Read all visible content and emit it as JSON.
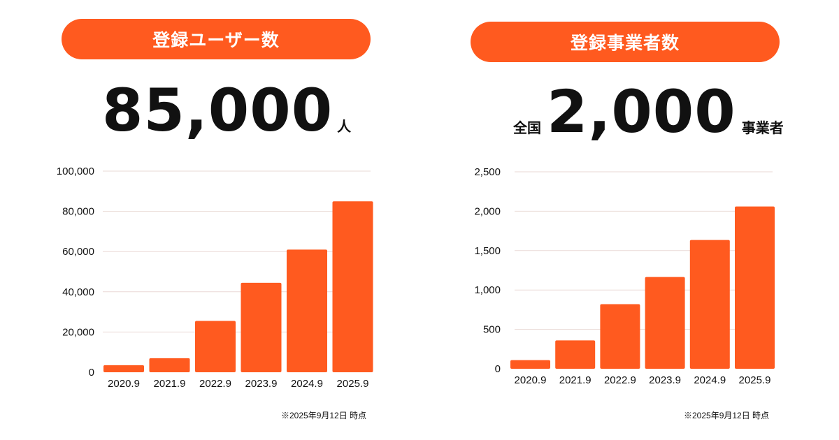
{
  "panels": [
    {
      "pill_label": "登録ユーザー数",
      "headline_value": "85,000",
      "headline_unit": "人",
      "note": "※2025年9月12日 時点"
    },
    {
      "pill_label": "登録事業者数",
      "headline_prefix": "全国",
      "headline_value": "2,000",
      "headline_unit": "事業者",
      "note": "※2025年9月12日 時点"
    }
  ],
  "colors": {
    "accent": "#ff5a1f",
    "grid": "#ead9d5",
    "text": "#111111"
  },
  "chart_data": [
    {
      "type": "bar",
      "title": "登録ユーザー数",
      "categories": [
        "2020.9",
        "2021.9",
        "2022.9",
        "2023.9",
        "2024.9",
        "2025.9"
      ],
      "values": [
        3500,
        7000,
        25500,
        44500,
        61000,
        85000
      ],
      "ylim": [
        0,
        100000
      ],
      "yticks": [
        "0",
        "20,000",
        "40,000",
        "60,000",
        "80,000",
        "100,000"
      ],
      "grid": true
    },
    {
      "type": "bar",
      "title": "登録事業者数",
      "categories": [
        "2020.9",
        "2021.9",
        "2022.9",
        "2023.9",
        "2024.9",
        "2025.9"
      ],
      "values": [
        110,
        360,
        820,
        1165,
        1635,
        2060
      ],
      "ylim": [
        0,
        2500
      ],
      "yticks": [
        "0",
        "500",
        "1,000",
        "1,500",
        "2,000",
        "2,500"
      ],
      "grid": true
    }
  ]
}
